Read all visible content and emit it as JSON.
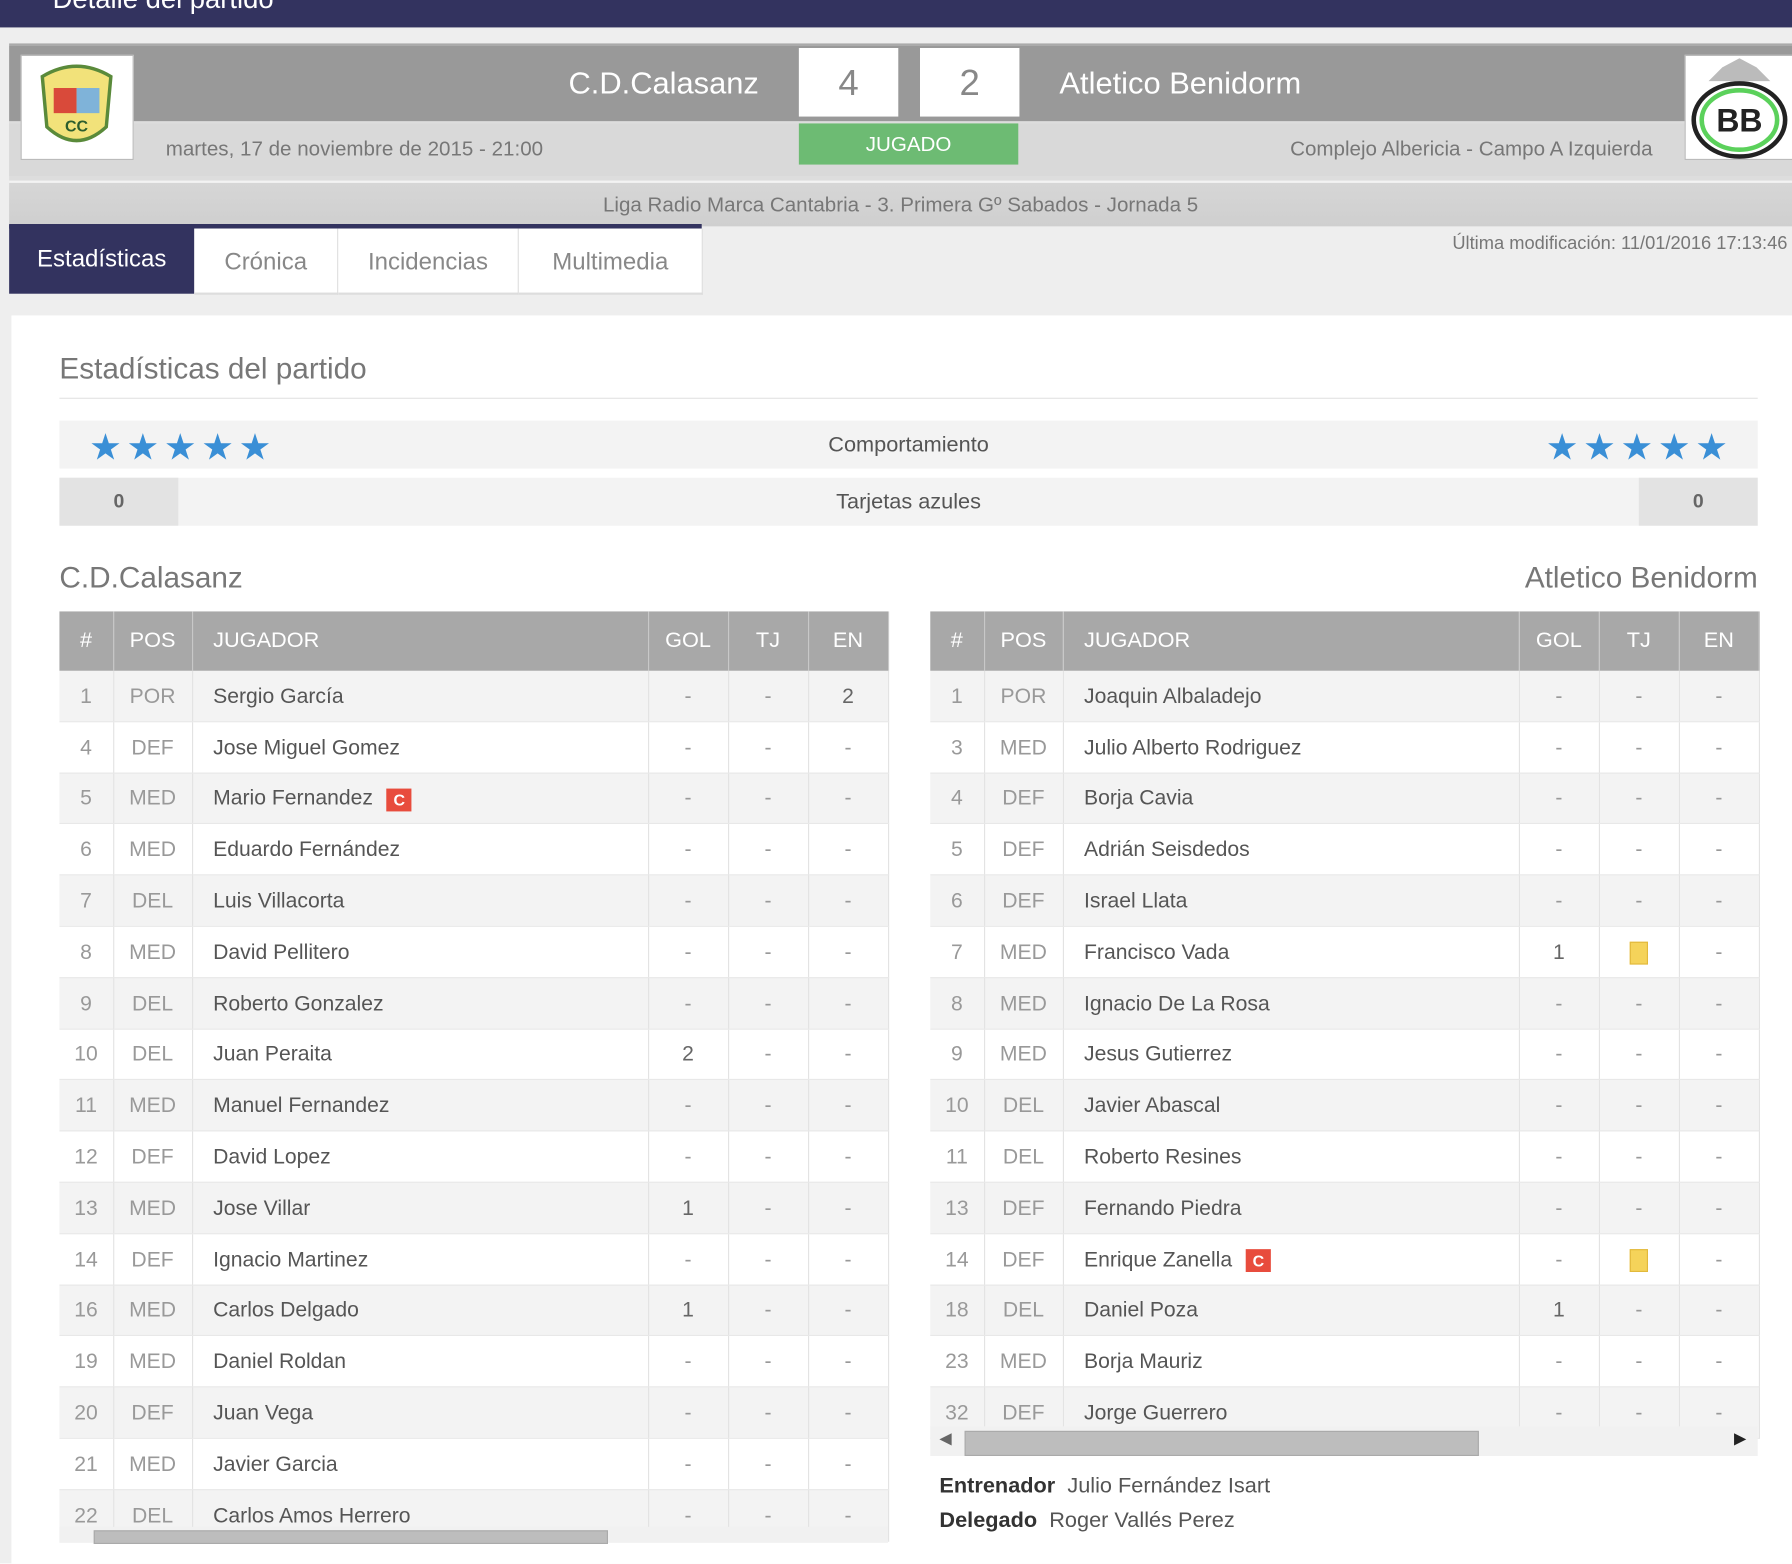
{
  "window": {
    "title": "Detalle del partido"
  },
  "match": {
    "home": {
      "name": "C.D.Calasanz",
      "score": "4"
    },
    "away": {
      "name": "Atletico Benidorm",
      "score": "2"
    },
    "status": "JUGADO",
    "status_color": "#6dbb73",
    "datetime": "martes, 17 de noviembre de 2015 - 21:00",
    "venue": "Complejo Albericia - Campo A Izquierda",
    "competition": "Liga Radio Marca Cantabria - 3. Primera Gº Sabados - Jornada 5"
  },
  "tabs": [
    {
      "label": "Estadísticas",
      "active": true
    },
    {
      "label": "Crónica"
    },
    {
      "label": "Incidencias"
    },
    {
      "label": "Multimedia"
    }
  ],
  "last_modified": "Última modificación: 11/01/2016 17:13:46",
  "stats": {
    "title": "Estadísticas del partido",
    "behaviour": {
      "label": "Comportamiento",
      "home_stars": 5,
      "away_stars": 5,
      "star_color": "#3a8fd6"
    },
    "blue_cards": {
      "label": "Tarjetas azules",
      "home": "0",
      "away": "0"
    }
  },
  "columns": [
    "#",
    "POS",
    "JUGADOR",
    "GOL",
    "TJ",
    "EN"
  ],
  "home_players": [
    [
      "1",
      "POR",
      "Sergio García",
      "-",
      "-",
      "2"
    ],
    [
      "4",
      "DEF",
      "Jose Miguel Gomez",
      "-",
      "-",
      "-"
    ],
    [
      "5",
      "MED",
      "Mario Fernandez",
      "-",
      "-",
      "-",
      "C"
    ],
    [
      "6",
      "MED",
      "Eduardo Fernández",
      "-",
      "-",
      "-"
    ],
    [
      "7",
      "DEL",
      "Luis Villacorta",
      "-",
      "-",
      "-"
    ],
    [
      "8",
      "MED",
      "David Pellitero",
      "-",
      "-",
      "-"
    ],
    [
      "9",
      "DEL",
      "Roberto Gonzalez",
      "-",
      "-",
      "-"
    ],
    [
      "10",
      "DEL",
      "Juan Peraita",
      "2",
      "-",
      "-"
    ],
    [
      "11",
      "MED",
      "Manuel Fernandez",
      "-",
      "-",
      "-"
    ],
    [
      "12",
      "DEF",
      "David Lopez",
      "-",
      "-",
      "-"
    ],
    [
      "13",
      "MED",
      "Jose Villar",
      "1",
      "-",
      "-"
    ],
    [
      "14",
      "DEF",
      "Ignacio Martinez",
      "-",
      "-",
      "-"
    ],
    [
      "16",
      "MED",
      "Carlos Delgado",
      "1",
      "-",
      "-"
    ],
    [
      "19",
      "MED",
      "Daniel Roldan",
      "-",
      "-",
      "-"
    ],
    [
      "20",
      "DEF",
      "Juan Vega",
      "-",
      "-",
      "-"
    ],
    [
      "21",
      "MED",
      "Javier Garcia",
      "-",
      "-",
      "-"
    ],
    [
      "22",
      "DEL",
      "Carlos Amos Herrero",
      "-",
      "-",
      "-"
    ]
  ],
  "away_players": [
    [
      "1",
      "POR",
      "Joaquin Albaladejo",
      "-",
      "-",
      "-"
    ],
    [
      "3",
      "MED",
      "Julio Alberto Rodriguez",
      "-",
      "-",
      "-"
    ],
    [
      "4",
      "DEF",
      "Borja Cavia",
      "-",
      "-",
      "-"
    ],
    [
      "5",
      "DEF",
      "Adrián Seisdedos",
      "-",
      "-",
      "-"
    ],
    [
      "6",
      "DEF",
      "Israel Llata",
      "-",
      "-",
      "-"
    ],
    [
      "7",
      "MED",
      "Francisco Vada",
      "1",
      "yellow",
      "-"
    ],
    [
      "8",
      "MED",
      "Ignacio De La Rosa",
      "-",
      "-",
      "-"
    ],
    [
      "9",
      "MED",
      "Jesus Gutierrez",
      "-",
      "-",
      "-"
    ],
    [
      "10",
      "DEL",
      "Javier Abascal",
      "-",
      "-",
      "-"
    ],
    [
      "11",
      "DEL",
      "Roberto Resines",
      "-",
      "-",
      "-"
    ],
    [
      "13",
      "DEF",
      "Fernando Piedra",
      "-",
      "-",
      "-"
    ],
    [
      "14",
      "DEF",
      "Enrique Zanella",
      "-",
      "yellow",
      "-",
      "C"
    ],
    [
      "18",
      "DEL",
      "Daniel Poza",
      "1",
      "-",
      "-"
    ],
    [
      "23",
      "MED",
      "Borja Mauriz",
      "-",
      "-",
      "-"
    ],
    [
      "32",
      "DEF",
      "Jorge Guerrero",
      "-",
      "-",
      "-"
    ]
  ],
  "captain_badge": "C",
  "away_staff": {
    "coach_label": "Entrenador",
    "coach": "Julio Fernández Isart",
    "delegate_label": "Delegado",
    "delegate": "Roger Vallés Perez"
  }
}
